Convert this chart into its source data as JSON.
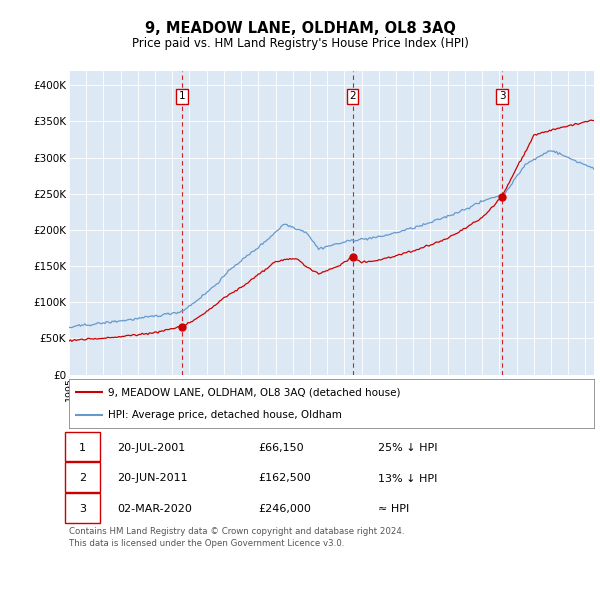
{
  "title": "9, MEADOW LANE, OLDHAM, OL8 3AQ",
  "subtitle": "Price paid vs. HM Land Registry's House Price Index (HPI)",
  "background_color": "#dce9f5",
  "plot_bg_color": "#dce9f5",
  "hpi_color": "#6699cc",
  "sale_color": "#cc0000",
  "vline_color": "#cc0000",
  "ylim": [
    0,
    420000
  ],
  "yticks": [
    0,
    50000,
    100000,
    150000,
    200000,
    250000,
    300000,
    350000,
    400000
  ],
  "ytick_labels": [
    "£0",
    "£50K",
    "£100K",
    "£150K",
    "£200K",
    "£250K",
    "£300K",
    "£350K",
    "£400K"
  ],
  "sale_dates": [
    2001.55,
    2011.47,
    2020.17
  ],
  "sale_prices": [
    66150,
    162500,
    246000
  ],
  "sale_labels": [
    "1",
    "2",
    "3"
  ],
  "legend_line1": "9, MEADOW LANE, OLDHAM, OL8 3AQ (detached house)",
  "legend_line2": "HPI: Average price, detached house, Oldham",
  "table_rows": [
    [
      "1",
      "20-JUL-2001",
      "£66,150",
      "25% ↓ HPI"
    ],
    [
      "2",
      "20-JUN-2011",
      "£162,500",
      "13% ↓ HPI"
    ],
    [
      "3",
      "02-MAR-2020",
      "£246,000",
      "≈ HPI"
    ]
  ],
  "footer": "Contains HM Land Registry data © Crown copyright and database right 2024.\nThis data is licensed under the Open Government Licence v3.0.",
  "xmin": 1995.0,
  "xmax": 2025.5
}
